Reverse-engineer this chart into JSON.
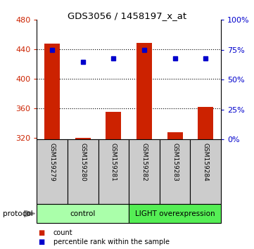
{
  "title": "GDS3056 / 1458197_x_at",
  "samples": [
    "GSM159279",
    "GSM159280",
    "GSM159281",
    "GSM159282",
    "GSM159283",
    "GSM159284"
  ],
  "bar_values": [
    448,
    320,
    355,
    449,
    328,
    362
  ],
  "bar_baseline": 318,
  "percentile_values": [
    75,
    65,
    68,
    75,
    68,
    68
  ],
  "left_ylim": [
    318,
    480
  ],
  "left_yticks": [
    320,
    360,
    400,
    440,
    480
  ],
  "right_ylim": [
    0,
    100
  ],
  "right_yticks": [
    0,
    25,
    50,
    75,
    100
  ],
  "bar_color": "#cc2200",
  "dot_color": "#0000cc",
  "left_tick_color": "#cc2200",
  "right_tick_color": "#0000cc",
  "sample_box_color": "#cccccc",
  "groups": [
    {
      "label": "control",
      "start": 0,
      "end": 3,
      "color": "#aaffaa"
    },
    {
      "label": "LIGHT overexpression",
      "start": 3,
      "end": 6,
      "color": "#55ee55"
    }
  ],
  "protocol_label": "protocol",
  "legend_items": [
    {
      "color": "#cc2200",
      "label": "count"
    },
    {
      "color": "#0000cc",
      "label": "percentile rank within the sample"
    }
  ],
  "grid_yticks": [
    360,
    400,
    440
  ]
}
